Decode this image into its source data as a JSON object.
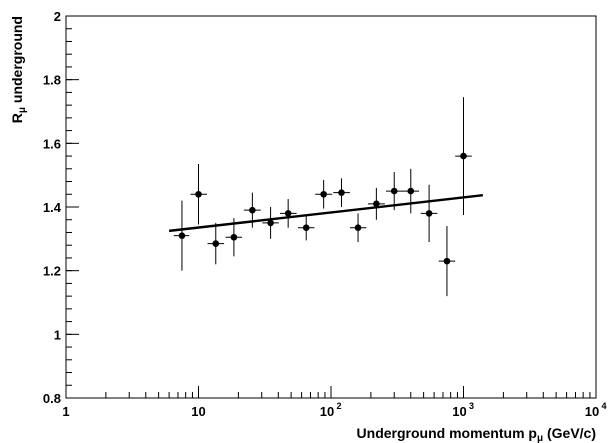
{
  "chart_data": {
    "type": "scatter",
    "xscale": "log",
    "xlim": [
      1,
      10000
    ],
    "ylim": [
      0.8,
      2.0
    ],
    "grid": false,
    "legend": "none",
    "xlabel": {
      "main": "Underground momentum p",
      "sub": "μ",
      "unit": " (GeV/c)"
    },
    "ylabel": {
      "main": "R",
      "sub": "μ",
      "rest": " underground"
    },
    "x_ticks": [
      {
        "value": 1,
        "label": "1",
        "exp": ""
      },
      {
        "value": 10,
        "label": "10",
        "exp": ""
      },
      {
        "value": 100,
        "label": "10",
        "exp": "2"
      },
      {
        "value": 1000,
        "label": "10",
        "exp": "3"
      },
      {
        "value": 10000,
        "label": "10",
        "exp": "4"
      }
    ],
    "y_ticks": [
      {
        "value": 0.8,
        "label": "0.8"
      },
      {
        "value": 1.0,
        "label": "1"
      },
      {
        "value": 1.2,
        "label": "1.2"
      },
      {
        "value": 1.4,
        "label": "1.4"
      },
      {
        "value": 1.6,
        "label": "1.6"
      },
      {
        "value": 1.8,
        "label": "1.8"
      },
      {
        "value": 2.0,
        "label": "2"
      }
    ],
    "points": [
      {
        "x": 7.5,
        "y": 1.31,
        "xerr_lo": 6.5,
        "xerr_hi": 8.5,
        "yerr": 0.11
      },
      {
        "x": 10,
        "y": 1.44,
        "xerr_lo": 8.7,
        "xerr_hi": 11.6,
        "yerr": 0.095
      },
      {
        "x": 13.5,
        "y": 1.285,
        "xerr_lo": 11.7,
        "xerr_hi": 15.6,
        "yerr": 0.065
      },
      {
        "x": 18.5,
        "y": 1.305,
        "xerr_lo": 16,
        "xerr_hi": 21.3,
        "yerr": 0.06
      },
      {
        "x": 25.5,
        "y": 1.39,
        "xerr_lo": 22,
        "xerr_hi": 29.5,
        "yerr": 0.055
      },
      {
        "x": 35,
        "y": 1.35,
        "xerr_lo": 30.3,
        "xerr_hi": 40.4,
        "yerr": 0.05
      },
      {
        "x": 47.5,
        "y": 1.38,
        "xerr_lo": 41.2,
        "xerr_hi": 55,
        "yerr": 0.045
      },
      {
        "x": 65,
        "y": 1.335,
        "xerr_lo": 56.3,
        "xerr_hi": 75,
        "yerr": 0.04
      },
      {
        "x": 88,
        "y": 1.44,
        "xerr_lo": 76,
        "xerr_hi": 102,
        "yerr": 0.045
      },
      {
        "x": 120,
        "y": 1.445,
        "xerr_lo": 104,
        "xerr_hi": 139,
        "yerr": 0.045
      },
      {
        "x": 160,
        "y": 1.335,
        "xerr_lo": 139,
        "xerr_hi": 185,
        "yerr": 0.045
      },
      {
        "x": 220,
        "y": 1.41,
        "xerr_lo": 190,
        "xerr_hi": 255,
        "yerr": 0.05
      },
      {
        "x": 300,
        "y": 1.45,
        "xerr_lo": 260,
        "xerr_hi": 347,
        "yerr": 0.06
      },
      {
        "x": 400,
        "y": 1.45,
        "xerr_lo": 346,
        "xerr_hi": 462,
        "yerr": 0.07
      },
      {
        "x": 550,
        "y": 1.38,
        "xerr_lo": 476,
        "xerr_hi": 635,
        "yerr": 0.09
      },
      {
        "x": 750,
        "y": 1.23,
        "xerr_lo": 650,
        "xerr_hi": 866,
        "yerr": 0.11
      },
      {
        "x": 1000,
        "y": 1.56,
        "xerr_lo": 866,
        "xerr_hi": 1155,
        "yerr": 0.185
      }
    ],
    "fit_line": {
      "x": [
        6,
        1400
      ],
      "y": [
        1.325,
        1.437
      ]
    }
  }
}
